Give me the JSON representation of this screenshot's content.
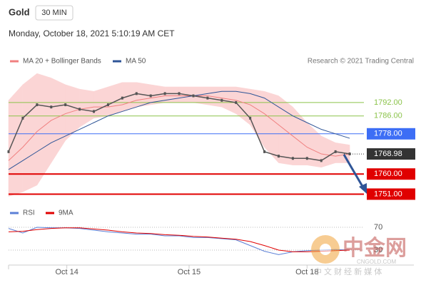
{
  "chart_data": {
    "type": "line",
    "title": "Gold",
    "timeframe": "30 MIN",
    "subtitle": "Monday, October 18, 2021 5:10:19 AM CET",
    "source": "Research © 2021 Trading Central",
    "x": [
      0,
      1,
      2,
      3,
      4,
      5,
      6,
      7,
      8,
      9,
      10,
      11,
      12,
      13,
      14,
      15,
      16,
      17,
      18,
      19,
      20,
      21,
      22,
      23,
      24
    ],
    "xlim": [
      0,
      25
    ],
    "xticks": [
      {
        "value": 4.1,
        "label": "Oct 14"
      },
      {
        "value": 12.7,
        "label": "Oct 15"
      },
      {
        "value": 21,
        "label": "Oct 18"
      }
    ],
    "ylim": [
      1747,
      1806
    ],
    "price": {
      "color": "#555555",
      "values": [
        1770,
        1785,
        1791,
        1790,
        1791,
        1789,
        1788,
        1791,
        1794,
        1796,
        1795,
        1796,
        1796,
        1795,
        1794,
        1793,
        1792,
        1785,
        1770,
        1768,
        1767,
        1767,
        1766,
        1770,
        1769
      ]
    },
    "series": [
      {
        "name": "MA 20 + Bollinger Bands",
        "color": "#f08080",
        "values": [
          1766,
          1772,
          1779,
          1784,
          1787,
          1789,
          1790,
          1790,
          1791,
          1793,
          1794,
          1795,
          1795,
          1795,
          1795,
          1794,
          1793,
          1791,
          1787,
          1782,
          1777,
          1772,
          1769,
          1768,
          1769
        ]
      },
      {
        "name": "MA 50",
        "color": "#2f5597",
        "values": [
          1762,
          1766,
          1770,
          1774,
          1777,
          1780,
          1783,
          1786,
          1788,
          1790,
          1792,
          1793,
          1794,
          1795,
          1796,
          1797,
          1797,
          1796,
          1794,
          1790,
          1786,
          1783,
          1780,
          1778,
          1776
        ]
      }
    ],
    "bands": {
      "color": "#fbd5d5",
      "upper": [
        1793,
        1800,
        1805,
        1803,
        1800,
        1798,
        1797,
        1799,
        1801,
        1801,
        1800,
        1799,
        1799,
        1799,
        1799,
        1799,
        1799,
        1798,
        1797,
        1795,
        1790,
        1783,
        1777,
        1774,
        1773
      ],
      "lower": [
        1750,
        1752,
        1755,
        1765,
        1775,
        1781,
        1785,
        1786,
        1788,
        1790,
        1791,
        1792,
        1792,
        1792,
        1791,
        1790,
        1787,
        1782,
        1772,
        1765,
        1764,
        1764,
        1763,
        1765,
        1765
      ]
    },
    "levels": [
      {
        "value": 1792,
        "label": "1792.00",
        "color": "#8bc34a",
        "boxed": false,
        "line": "solid"
      },
      {
        "value": 1786,
        "label": "1786.00",
        "color": "#8bc34a",
        "boxed": false,
        "line": "solid"
      },
      {
        "value": 1778,
        "label": "1778.00",
        "color": "#3d6ef5",
        "boxed": true,
        "line": "solid"
      },
      {
        "value": 1768.98,
        "label": "1768.98",
        "color": "#333333",
        "boxed": true,
        "line": "dotted"
      },
      {
        "value": 1760,
        "label": "1760.00",
        "color": "#e00000",
        "boxed": true,
        "line": "solid"
      },
      {
        "value": 1751,
        "label": "1751.00",
        "color": "#e00000",
        "boxed": true,
        "line": "solid"
      }
    ],
    "rsi": {
      "ylim": [
        0,
        100
      ],
      "yticks": [
        30,
        70
      ],
      "series": [
        {
          "name": "RSI",
          "color": "#5b7fd6",
          "values": [
            68,
            60,
            70,
            69,
            69,
            68,
            65,
            62,
            60,
            58,
            58,
            55,
            55,
            52,
            52,
            50,
            48,
            38,
            28,
            22,
            27,
            29,
            30,
            31,
            30
          ]
        },
        {
          "name": "9MA",
          "color": "#e00000",
          "values": [
            62,
            63,
            66,
            68,
            69,
            69,
            67,
            65,
            62,
            60,
            59,
            57,
            56,
            54,
            53,
            51,
            49,
            45,
            38,
            30,
            27,
            27,
            28,
            29,
            30
          ]
        }
      ]
    },
    "watermark": {
      "title": "中金网",
      "url": "CNGOLD.COM",
      "tagline": "中 文 财 经 新 媒 体"
    }
  }
}
